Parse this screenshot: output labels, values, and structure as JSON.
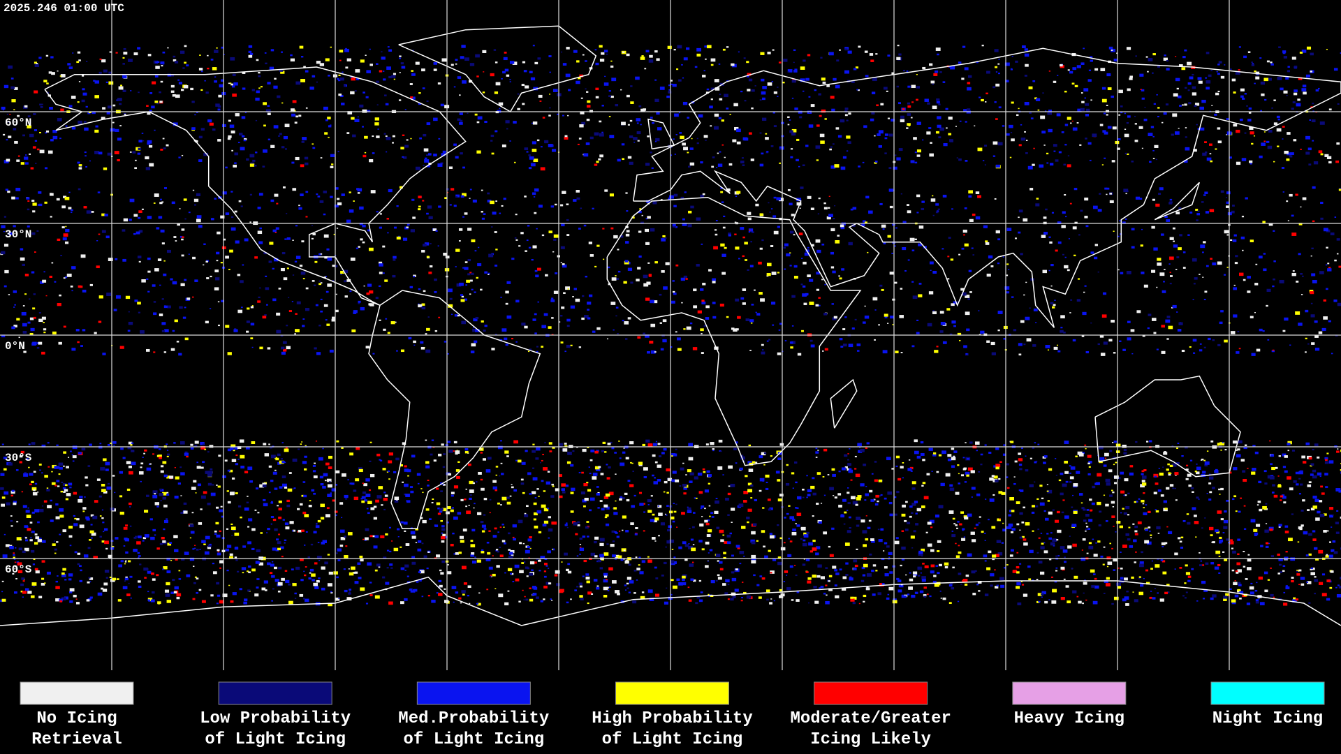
{
  "timestamp": "2025.246 01:00 UTC",
  "latitude_labels": [
    "60°N",
    "30°N",
    "0°N",
    "30°S",
    "60°S"
  ],
  "legend": [
    {
      "lines": [
        "No Icing",
        "Retrieval"
      ],
      "color": "#f0f0f0"
    },
    {
      "lines": [
        "Low Probability",
        "of Light Icing"
      ],
      "color": "#0a0a78"
    },
    {
      "lines": [
        "Med.Probability",
        "of Light Icing"
      ],
      "color": "#0a14f0"
    },
    {
      "lines": [
        "High Probability",
        "of Light Icing"
      ],
      "color": "#ffff00"
    },
    {
      "lines": [
        "Moderate/Greater",
        "Icing Likely"
      ],
      "color": "#ff0000"
    },
    {
      "lines": [
        "Heavy Icing"
      ],
      "color": "#e6a0e6"
    },
    {
      "lines": [
        "Night Icing"
      ],
      "color": "#00ffff"
    }
  ]
}
